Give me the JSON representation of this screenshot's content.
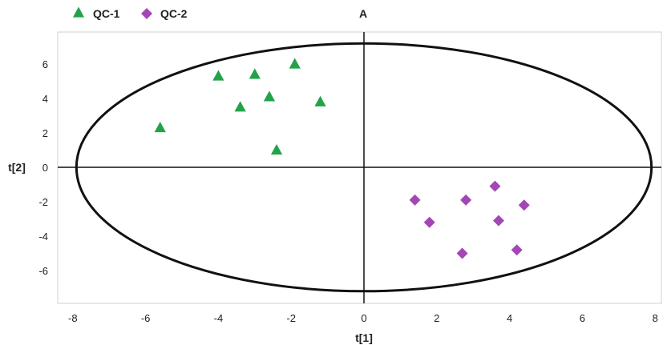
{
  "chart_data": {
    "type": "scatter",
    "title": "A",
    "xlabel": "t[1]",
    "ylabel": "t[2]",
    "xlim": [
      -8.5,
      8.2
    ],
    "ylim": [
      -8,
      7.8
    ],
    "xticks": [
      -8,
      -6,
      -4,
      -2,
      0,
      2,
      4,
      6,
      8
    ],
    "yticks": [
      -6,
      -4,
      -2,
      0,
      2,
      4,
      6
    ],
    "legend_position": "top-left",
    "confidence_ellipse": {
      "rx": 7.9,
      "ry": 7.2
    },
    "series": [
      {
        "name": "QC-1",
        "marker": "triangle",
        "color": "#22a348",
        "points": [
          [
            -5.6,
            2.3
          ],
          [
            -4.0,
            5.3
          ],
          [
            -3.4,
            3.5
          ],
          [
            -3.0,
            5.4
          ],
          [
            -2.6,
            4.1
          ],
          [
            -2.4,
            1.0
          ],
          [
            -1.9,
            6.0
          ],
          [
            -1.2,
            3.8
          ]
        ]
      },
      {
        "name": "QC-2",
        "marker": "diamond",
        "color": "#a347b5",
        "points": [
          [
            1.4,
            -1.9
          ],
          [
            1.8,
            -3.2
          ],
          [
            2.7,
            -5.0
          ],
          [
            2.8,
            -1.9
          ],
          [
            3.6,
            -1.1
          ],
          [
            3.7,
            -3.1
          ],
          [
            4.2,
            -4.8
          ],
          [
            4.4,
            -2.2
          ]
        ]
      }
    ]
  }
}
